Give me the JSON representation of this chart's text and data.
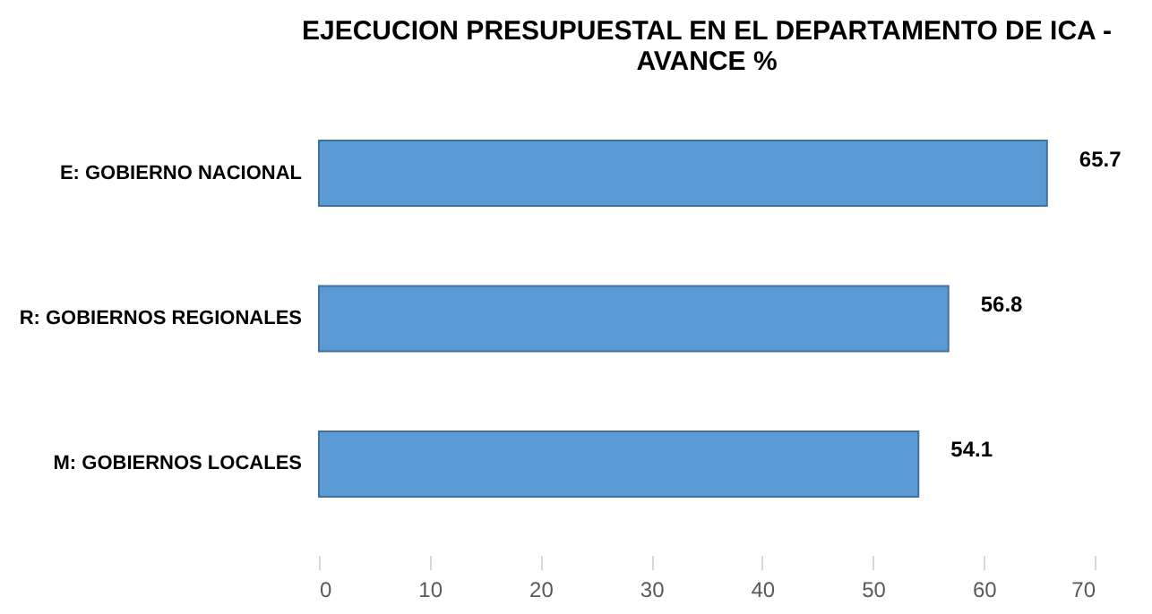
{
  "chart_data": {
    "type": "bar",
    "orientation": "horizontal",
    "title": "EJECUCION PRESUPUESTAL EN EL DEPARTAMENTO DE ICA -\nAVANCE %",
    "categories": [
      "E: GOBIERNO NACIONAL",
      "R: GOBIERNOS REGIONALES",
      "M: GOBIERNOS LOCALES"
    ],
    "values": [
      65.7,
      56.8,
      54.1
    ],
    "color": "#5b9bd5",
    "xlim": [
      0,
      70
    ],
    "xticks": [
      0,
      10,
      20,
      30,
      40,
      50,
      60,
      70
    ],
    "data_labels": true,
    "grid": false
  }
}
